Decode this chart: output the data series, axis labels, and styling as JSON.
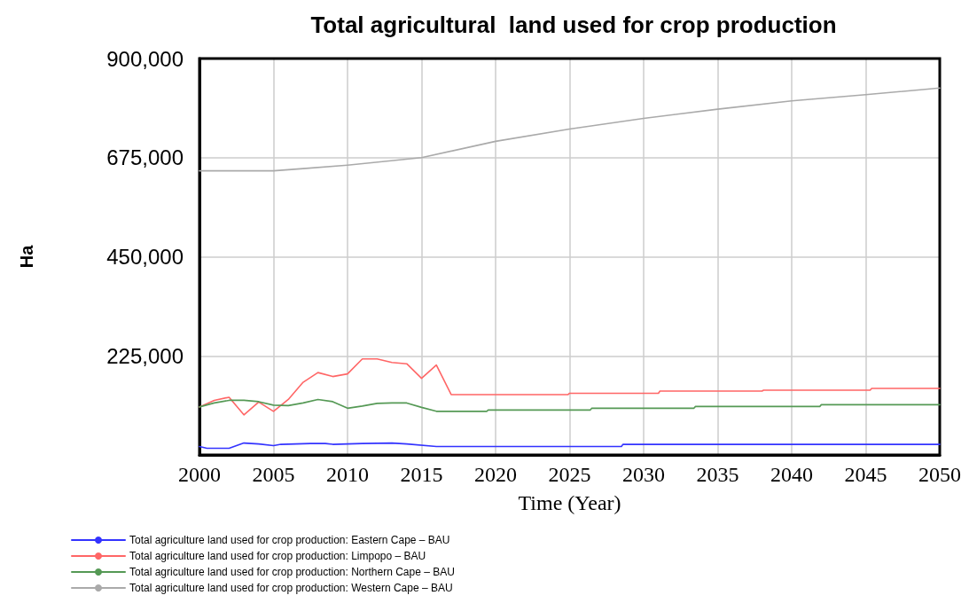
{
  "chart_data": {
    "type": "line",
    "title": "Total agricultural  land used for crop production",
    "xlabel": "Time (Year)",
    "ylabel": "Ha",
    "xlim": [
      2000,
      2050
    ],
    "xticks": [
      2000,
      2005,
      2010,
      2015,
      2020,
      2025,
      2030,
      2035,
      2040,
      2045,
      2050
    ],
    "ylim": [
      0,
      900000
    ],
    "yticks": [
      {
        "value": 0,
        "label": null
      },
      {
        "value": 225000,
        "label": "225,000"
      },
      {
        "value": 450000,
        "label": "450,000"
      },
      {
        "value": 675000,
        "label": "675,000"
      },
      {
        "value": 900000,
        "label": "900,000"
      }
    ],
    "grid": true,
    "legend": "bottom",
    "marker": "none",
    "line_style": "solid",
    "series": [
      {
        "name": "Total agriculture land used for crop production: Eastern Cape – BAU",
        "color": "#3333ff",
        "x": [
          2000,
          2000.5,
          2002,
          2002.5,
          2003,
          2004,
          2005,
          2005.5,
          2007.5,
          2008.5,
          2009,
          2011,
          2013,
          2014,
          2016,
          2028.5,
          2028.6,
          2050
        ],
        "values": [
          19000,
          15000,
          15000,
          21000,
          27000,
          25000,
          21000,
          24000,
          26000,
          26000,
          24000,
          26000,
          27000,
          25000,
          19000,
          19000,
          24000,
          24000
        ]
      },
      {
        "name": "Total agriculture land used for crop production: Limpopo – BAU",
        "color": "#ff6666",
        "x": [
          2000,
          2001,
          2002,
          2003,
          2004,
          2005,
          2006,
          2007,
          2008,
          2009,
          2010,
          2011,
          2012,
          2013,
          2014,
          2015,
          2016,
          2017,
          2024.9,
          2025,
          2031,
          2031.1,
          2038,
          2038.1,
          2045.3,
          2045.4,
          2050
        ],
        "values": [
          109000,
          124000,
          131000,
          91000,
          120000,
          99000,
          126000,
          165000,
          187000,
          178000,
          184000,
          218000,
          218000,
          210000,
          207000,
          174000,
          204000,
          137000,
          137000,
          140000,
          140000,
          145000,
          145000,
          147000,
          147000,
          151000,
          151000
        ]
      },
      {
        "name": "Total agriculture land used for crop production: Northern Cape – BAU",
        "color": "#559955",
        "x": [
          2000,
          2001,
          2002,
          2003,
          2004,
          2005,
          2006,
          2007,
          2008,
          2009,
          2010,
          2011,
          2012,
          2013,
          2014,
          2015,
          2016,
          2019.4,
          2019.5,
          2026.4,
          2026.5,
          2033.4,
          2033.5,
          2041.9,
          2042,
          2050
        ],
        "values": [
          109000,
          118000,
          124000,
          124000,
          121000,
          113000,
          112000,
          118000,
          126000,
          121000,
          106000,
          111000,
          117000,
          118000,
          118000,
          108000,
          99000,
          99000,
          102000,
          102000,
          106000,
          106000,
          110000,
          110000,
          114000,
          114000
        ]
      },
      {
        "name": "Total agriculture land used for crop production: Western Cape – BAU",
        "color": "#aaaaaa",
        "x": [
          2000,
          2005,
          2007,
          2010,
          2015,
          2020,
          2025,
          2030,
          2035,
          2040,
          2045,
          2050
        ],
        "values": [
          645000,
          645000,
          650000,
          658000,
          675000,
          712000,
          740000,
          764000,
          785000,
          804000,
          818000,
          833000
        ]
      }
    ]
  }
}
